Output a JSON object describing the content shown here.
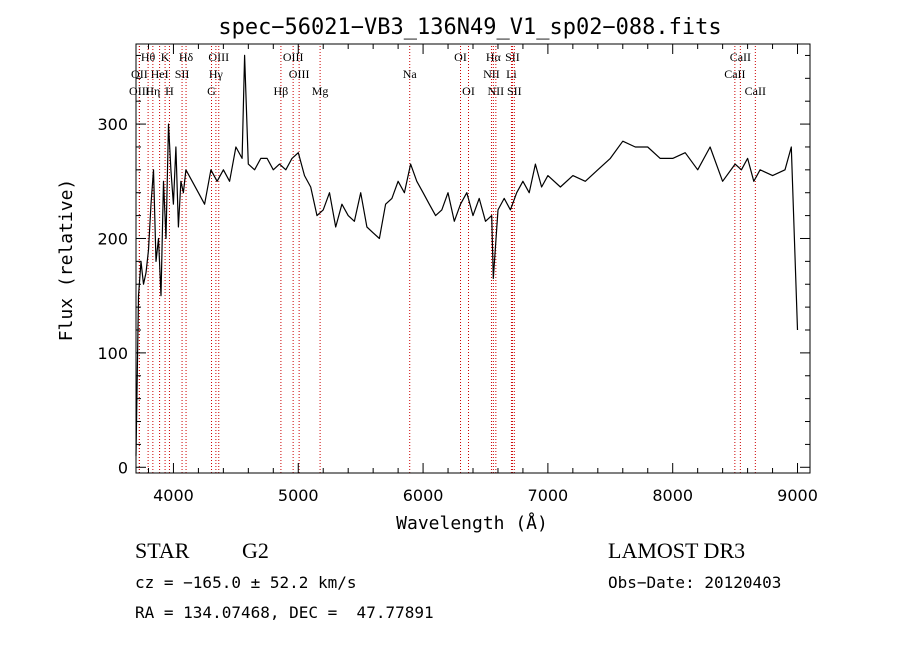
{
  "chart_data": {
    "type": "line",
    "title": "spec−56021−VB3_136N49_V1_sp02−088.fits",
    "xlabel": "Wavelength (Å)",
    "ylabel": "Flux (relative)",
    "xlim": [
      3700,
      9100
    ],
    "ylim": [
      -5,
      370
    ],
    "xticks": [
      4000,
      5000,
      6000,
      7000,
      8000,
      9000
    ],
    "yticks": [
      0,
      100,
      200,
      300
    ],
    "grid": false,
    "series": [
      {
        "name": "spectrum",
        "x": [
          3700,
          3720,
          3740,
          3760,
          3780,
          3800,
          3820,
          3840,
          3860,
          3880,
          3900,
          3920,
          3940,
          3960,
          3980,
          4000,
          4020,
          4040,
          4060,
          4080,
          4100,
          4150,
          4200,
          4250,
          4300,
          4350,
          4400,
          4450,
          4500,
          4550,
          4570,
          4600,
          4650,
          4700,
          4750,
          4800,
          4850,
          4900,
          4950,
          5000,
          5050,
          5100,
          5150,
          5200,
          5250,
          5300,
          5350,
          5400,
          5450,
          5500,
          5550,
          5600,
          5650,
          5700,
          5750,
          5800,
          5850,
          5900,
          5950,
          6000,
          6050,
          6100,
          6150,
          6200,
          6250,
          6300,
          6350,
          6400,
          6450,
          6500,
          6550,
          6563,
          6600,
          6650,
          6700,
          6750,
          6800,
          6850,
          6900,
          6950,
          7000,
          7100,
          7200,
          7300,
          7400,
          7500,
          7600,
          7700,
          7800,
          7900,
          8000,
          8100,
          8200,
          8300,
          8400,
          8500,
          8550,
          8600,
          8650,
          8700,
          8800,
          8900,
          8950,
          9000
        ],
        "y": [
          10,
          150,
          180,
          160,
          170,
          190,
          230,
          260,
          180,
          200,
          150,
          250,
          200,
          300,
          260,
          230,
          280,
          210,
          250,
          240,
          260,
          250,
          240,
          230,
          260,
          250,
          260,
          250,
          280,
          270,
          360,
          265,
          260,
          270,
          270,
          260,
          265,
          260,
          270,
          275,
          255,
          245,
          220,
          225,
          240,
          210,
          230,
          220,
          215,
          240,
          210,
          205,
          200,
          230,
          235,
          250,
          240,
          265,
          250,
          240,
          230,
          220,
          225,
          240,
          215,
          230,
          240,
          220,
          235,
          215,
          220,
          165,
          225,
          235,
          225,
          240,
          250,
          240,
          265,
          245,
          255,
          245,
          255,
          250,
          260,
          270,
          285,
          280,
          280,
          270,
          270,
          275,
          260,
          280,
          250,
          265,
          260,
          270,
          250,
          260,
          255,
          260,
          280,
          120
        ]
      }
    ],
    "line_markers": [
      {
        "label": "Hθ",
        "wavelength": 3797,
        "row": 1
      },
      {
        "label": "OII",
        "wavelength": 3727,
        "row": 2
      },
      {
        "label": "OIII",
        "wavelength": 3727,
        "row": 3
      },
      {
        "label": "K",
        "wavelength": 3933,
        "row": 1
      },
      {
        "label": "HeI",
        "wavelength": 3889,
        "row": 2
      },
      {
        "label": "Hη",
        "wavelength": 3835,
        "row": 3
      },
      {
        "label": "Hδ",
        "wavelength": 4101,
        "row": 1
      },
      {
        "label": "SII",
        "wavelength": 4069,
        "row": 2
      },
      {
        "label": "H",
        "wavelength": 3968,
        "row": 3
      },
      {
        "label": "OIII",
        "wavelength": 4363,
        "row": 1
      },
      {
        "label": "Hγ",
        "wavelength": 4340,
        "row": 2
      },
      {
        "label": "G",
        "wavelength": 4305,
        "row": 3
      },
      {
        "label": "Hβ",
        "wavelength": 4861,
        "row": 3
      },
      {
        "label": "OIII",
        "wavelength": 4959,
        "row": 1
      },
      {
        "label": "OIII",
        "wavelength": 5007,
        "row": 2
      },
      {
        "label": "Mg",
        "wavelength": 5175,
        "row": 3
      },
      {
        "label": "Na",
        "wavelength": 5893,
        "row": 2
      },
      {
        "label": "OI",
        "wavelength": 6300,
        "row": 1
      },
      {
        "label": "OI",
        "wavelength": 6364,
        "row": 3
      },
      {
        "label": "Hα",
        "wavelength": 6563,
        "row": 1
      },
      {
        "label": "SII",
        "wavelength": 6716,
        "row": 1
      },
      {
        "label": "NII",
        "wavelength": 6548,
        "row": 2
      },
      {
        "label": "Li",
        "wavelength": 6708,
        "row": 2
      },
      {
        "label": "NII",
        "wavelength": 6583,
        "row": 3
      },
      {
        "label": "SII",
        "wavelength": 6731,
        "row": 3
      },
      {
        "label": "CaII",
        "wavelength": 8542,
        "row": 1
      },
      {
        "label": "CaII",
        "wavelength": 8498,
        "row": 2
      },
      {
        "label": "CaII",
        "wavelength": 8662,
        "row": 3
      }
    ]
  },
  "info": {
    "class": "STAR",
    "subclass": "G2",
    "survey": "LAMOST DR3",
    "cz": "cz = −165.0 ± 52.2 km/s",
    "obs_date": "Obs−Date: 20120403",
    "coords": "RA = 134.07468, DEC =  47.77891"
  },
  "colors": {
    "axis": "#000000",
    "line": "#000000",
    "marker": "#cc0000"
  }
}
